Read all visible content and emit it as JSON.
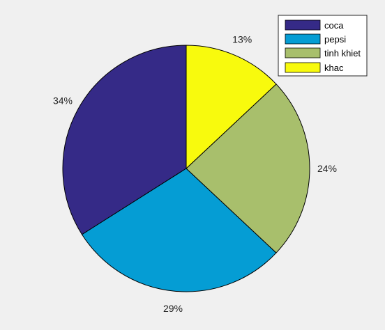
{
  "chart_data": {
    "type": "pie",
    "slices": [
      {
        "label": "coca",
        "value": 34,
        "color": "#352A87",
        "pct_text": "34%"
      },
      {
        "label": "pepsi",
        "value": 29,
        "color": "#059DD4",
        "pct_text": "29%"
      },
      {
        "label": "tinh khiet",
        "value": 24,
        "color": "#A8BF6C",
        "pct_text": "24%"
      },
      {
        "label": "khac",
        "value": 13,
        "color": "#F8FA0D",
        "pct_text": "13%"
      }
    ],
    "legend_position": "top-right",
    "start": "top",
    "direction": "counterclockwise",
    "background": "#f0f0f0",
    "edge_color": "#000000"
  }
}
